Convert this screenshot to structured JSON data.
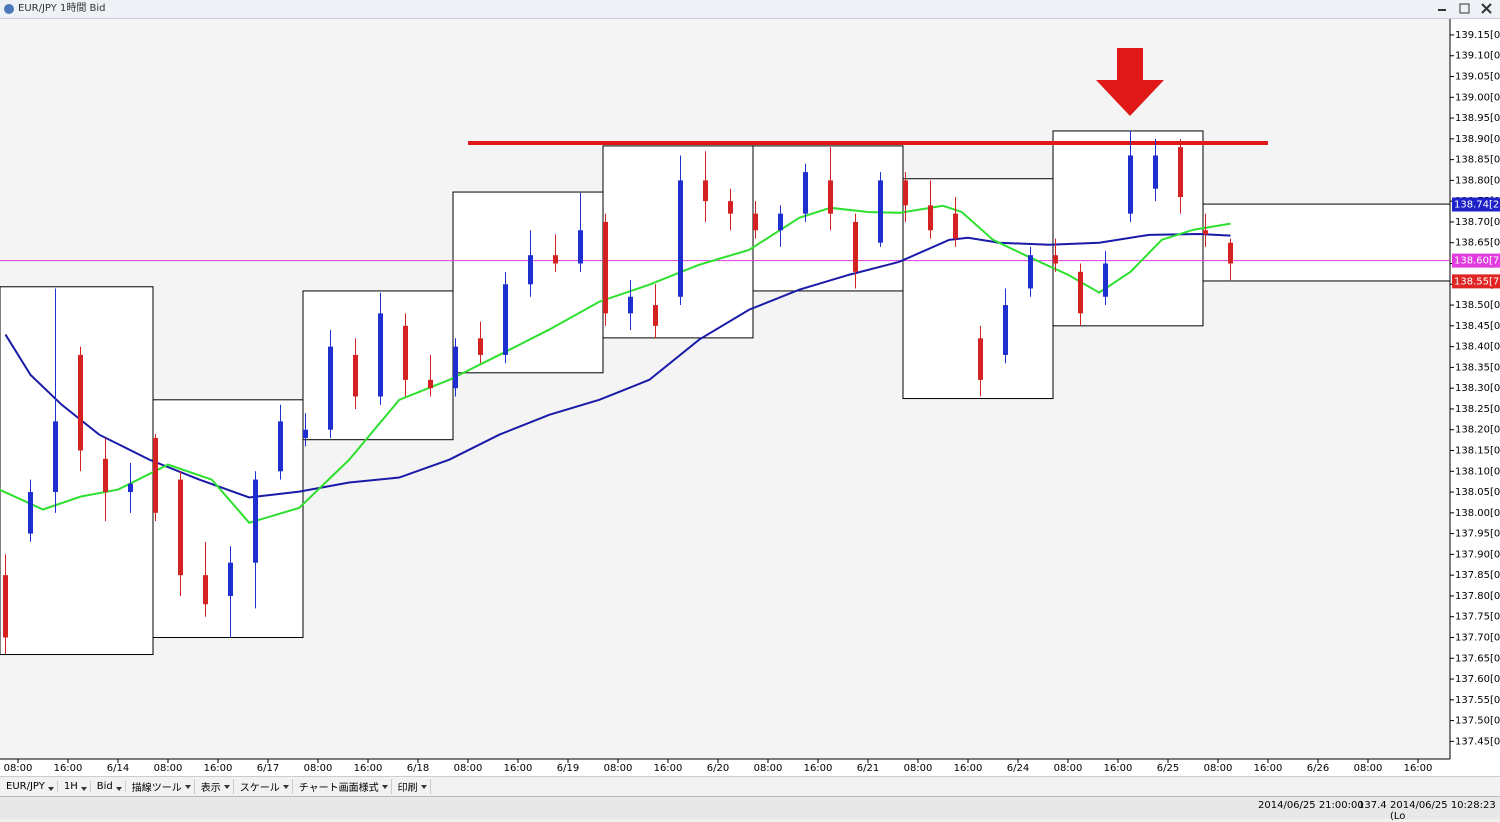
{
  "window": {
    "title": "EUR/JPY 1時間 Bid"
  },
  "toolbar": {
    "items": [
      "EUR/JPY",
      "1H",
      "Bid",
      "描線ツール",
      "表示",
      "スケール",
      "チャート画面様式",
      "印刷"
    ]
  },
  "status_bar": {
    "items": [
      "2014/06/25 21:00:00",
      "137.4",
      "2014/06/25 10:28:23 (Lo"
    ]
  },
  "chart_data": {
    "type": "candlestick",
    "xlim": [
      -2.88,
      229.12
    ],
    "ylim": [
      137.41,
      139.186
    ],
    "xticks": [
      {
        "value": 0,
        "label": "08:00"
      },
      {
        "value": 8,
        "label": "16:00"
      },
      {
        "value": 16,
        "label": "6/14"
      },
      {
        "value": 24,
        "label": "08:00"
      },
      {
        "value": 32,
        "label": "16:00"
      },
      {
        "value": 40,
        "label": "6/17"
      },
      {
        "value": 48,
        "label": "08:00"
      },
      {
        "value": 56,
        "label": "16:00"
      },
      {
        "value": 64,
        "label": "6/18"
      },
      {
        "value": 72,
        "label": "08:00"
      },
      {
        "value": 80,
        "label": "16:00"
      },
      {
        "value": 88,
        "label": "6/19"
      },
      {
        "value": 96,
        "label": "08:00"
      },
      {
        "value": 104,
        "label": "16:00"
      },
      {
        "value": 112,
        "label": "6/20"
      },
      {
        "value": 120,
        "label": "08:00"
      },
      {
        "value": 128,
        "label": "16:00"
      },
      {
        "value": 136,
        "label": "6/21"
      },
      {
        "value": 144,
        "label": "08:00"
      },
      {
        "value": 152,
        "label": "16:00"
      },
      {
        "value": 160,
        "label": "6/24"
      },
      {
        "value": 168,
        "label": "08:00"
      },
      {
        "value": 176,
        "label": "16:00"
      },
      {
        "value": 184,
        "label": "6/25"
      },
      {
        "value": 192,
        "label": "08:00"
      },
      {
        "value": 200,
        "label": "16:00"
      },
      {
        "value": 208,
        "label": "6/26"
      },
      {
        "value": 216,
        "label": "08:00"
      },
      {
        "value": 224,
        "label": "16:00"
      }
    ],
    "yticks": [
      {
        "value": 137.45,
        "label": "137.45[0]"
      },
      {
        "value": 137.5,
        "label": "137.50[0]"
      },
      {
        "value": 137.55,
        "label": "137.55[0]"
      },
      {
        "value": 137.6,
        "label": "137.60[0]"
      },
      {
        "value": 137.65,
        "label": "137.65[0]"
      },
      {
        "value": 137.7,
        "label": "137.70[0]"
      },
      {
        "value": 137.75,
        "label": "137.75[0]"
      },
      {
        "value": 137.8,
        "label": "137.80[0]"
      },
      {
        "value": 137.85,
        "label": "137.85[0]"
      },
      {
        "value": 137.9,
        "label": "137.90[0]"
      },
      {
        "value": 137.95,
        "label": "137.95[0]"
      },
      {
        "value": 138.0,
        "label": "138.00[0]"
      },
      {
        "value": 138.05,
        "label": "138.05[0]"
      },
      {
        "value": 138.1,
        "label": "138.10[0]"
      },
      {
        "value": 138.15,
        "label": "138.15[0]"
      },
      {
        "value": 138.2,
        "label": "138.20[0]"
      },
      {
        "value": 138.25,
        "label": "138.25[0]"
      },
      {
        "value": 138.3,
        "label": "138.30[0]"
      },
      {
        "value": 138.35,
        "label": "138.35[0]"
      },
      {
        "value": 138.4,
        "label": "138.40[0]"
      },
      {
        "value": 138.45,
        "label": "138.45[0]"
      },
      {
        "value": 138.5,
        "label": "138.50[0]"
      },
      {
        "value": 138.55,
        "label": "138.55[0]"
      },
      {
        "value": 138.6,
        "label": "138.60[0]"
      },
      {
        "value": 138.65,
        "label": "138.65[0]"
      },
      {
        "value": 138.7,
        "label": "138.70[0]"
      },
      {
        "value": 138.75,
        "label": "138.75[0]"
      },
      {
        "value": 138.8,
        "label": "138.80[0]"
      },
      {
        "value": 138.85,
        "label": "138.85[0]"
      },
      {
        "value": 138.9,
        "label": "138.90[0]"
      },
      {
        "value": 138.95,
        "label": "138.95[0]"
      },
      {
        "value": 139.0,
        "label": "139.00[0]"
      },
      {
        "value": 139.05,
        "label": "139.05[0]"
      },
      {
        "value": 139.1,
        "label": "139.10[0]"
      },
      {
        "value": 139.15,
        "label": "139.15[0]"
      }
    ],
    "up_color": "#1e2fd0",
    "down_color": "#d42222",
    "candles": {
      "x": [
        -2,
        2,
        6,
        10,
        14,
        18,
        22,
        26,
        30,
        34,
        38,
        42,
        46,
        50,
        54,
        58,
        62,
        66,
        70,
        74,
        78,
        82,
        86,
        90,
        94,
        98,
        102,
        106,
        110,
        114,
        118,
        122,
        126,
        130,
        134,
        138,
        142,
        146,
        150,
        154,
        158,
        162,
        166,
        170,
        174,
        178,
        182,
        186,
        190,
        194
      ],
      "open": [
        137.85,
        137.95,
        138.05,
        138.38,
        138.13,
        138.05,
        138.18,
        138.08,
        137.85,
        137.8,
        137.88,
        138.1,
        138.18,
        138.2,
        138.38,
        138.28,
        138.45,
        138.32,
        138.3,
        138.42,
        138.38,
        138.55,
        138.62,
        138.6,
        138.7,
        138.48,
        138.5,
        138.52,
        138.8,
        138.75,
        138.72,
        138.68,
        138.72,
        138.8,
        138.7,
        138.65,
        138.8,
        138.74,
        138.72,
        138.42,
        138.38,
        138.54,
        138.62,
        138.58,
        138.52,
        138.72,
        138.78,
        138.88,
        138.68,
        138.65
      ],
      "high": [
        137.9,
        138.08,
        138.54,
        138.4,
        138.18,
        138.12,
        138.19,
        138.1,
        137.93,
        137.92,
        138.1,
        138.26,
        138.24,
        138.44,
        138.42,
        138.53,
        138.48,
        138.38,
        138.42,
        138.46,
        138.58,
        138.68,
        138.67,
        138.77,
        138.72,
        138.56,
        138.55,
        138.86,
        138.87,
        138.78,
        138.75,
        138.74,
        138.84,
        138.88,
        138.72,
        138.82,
        138.82,
        138.8,
        138.76,
        138.45,
        138.54,
        138.64,
        138.66,
        138.6,
        138.63,
        138.92,
        138.9,
        138.9,
        138.72,
        138.66
      ],
      "low": [
        137.66,
        137.93,
        138.0,
        138.1,
        137.98,
        138.0,
        137.98,
        137.8,
        137.75,
        137.7,
        137.77,
        138.08,
        138.16,
        138.18,
        138.25,
        138.26,
        138.28,
        138.28,
        138.28,
        138.36,
        138.36,
        138.52,
        138.58,
        138.58,
        138.45,
        138.44,
        138.42,
        138.5,
        138.7,
        138.68,
        138.66,
        138.64,
        138.7,
        138.68,
        138.54,
        138.64,
        138.7,
        138.66,
        138.64,
        138.28,
        138.36,
        138.52,
        138.58,
        138.45,
        138.5,
        138.7,
        138.75,
        138.72,
        138.64,
        138.56
      ],
      "close": [
        137.7,
        138.05,
        138.22,
        138.15,
        138.05,
        138.07,
        138.0,
        137.85,
        137.78,
        137.88,
        138.08,
        138.22,
        138.2,
        138.4,
        138.28,
        138.48,
        138.32,
        138.3,
        138.4,
        138.38,
        138.55,
        138.62,
        138.6,
        138.68,
        138.48,
        138.52,
        138.45,
        138.8,
        138.75,
        138.72,
        138.68,
        138.72,
        138.82,
        138.72,
        138.58,
        138.8,
        138.74,
        138.68,
        138.66,
        138.32,
        138.5,
        138.62,
        138.6,
        138.48,
        138.6,
        138.86,
        138.86,
        138.76,
        138.67,
        138.6
      ]
    },
    "sessions": {
      "start": [
        -2.88,
        21.6,
        45.6,
        69.6,
        93.6,
        117.6,
        141.6,
        165.6,
        189.6
      ],
      "end": [
        21.6,
        45.6,
        69.6,
        93.6,
        117.6,
        141.6,
        165.6,
        189.6,
        229.12
      ],
      "high": [
        138.544,
        138.272,
        138.534,
        138.772,
        138.883,
        138.883,
        138.804,
        138.919,
        138.743
      ],
      "low": [
        137.659,
        137.7,
        138.176,
        138.337,
        138.421,
        138.534,
        138.275,
        138.45,
        138.558
      ]
    },
    "moving_averages": [
      {
        "color": "#1a1aa8",
        "x": [
          -2,
          2,
          7,
          13,
          21,
          29,
          37,
          45,
          53,
          61,
          69,
          77,
          85,
          93,
          101,
          109,
          117,
          125,
          133,
          141,
          149,
          152,
          157,
          165,
          173,
          181,
          189,
          194
        ],
        "values": [
          138.429,
          138.332,
          138.26,
          138.188,
          138.128,
          138.08,
          138.037,
          138.051,
          138.073,
          138.085,
          138.128,
          138.188,
          138.236,
          138.272,
          138.32,
          138.417,
          138.489,
          138.537,
          138.573,
          138.604,
          138.657,
          138.662,
          138.65,
          138.645,
          138.65,
          138.669,
          138.671,
          138.667
        ]
      },
      {
        "color": "#2ee02e",
        "x": [
          -3,
          4,
          10,
          16,
          24,
          31,
          37,
          45,
          53,
          61,
          69,
          77,
          85,
          93,
          101,
          109,
          117,
          125,
          130,
          136,
          141,
          148,
          151,
          156,
          162,
          168,
          173,
          178,
          183,
          188,
          194
        ],
        "values": [
          138.056,
          138.008,
          138.039,
          138.056,
          138.116,
          138.08,
          137.976,
          138.012,
          138.128,
          138.272,
          138.32,
          138.38,
          138.441,
          138.508,
          138.549,
          138.597,
          138.633,
          138.71,
          138.734,
          138.724,
          138.722,
          138.739,
          138.724,
          138.657,
          138.614,
          138.573,
          138.53,
          138.58,
          138.657,
          138.681,
          138.696
        ]
      }
    ],
    "level": {
      "value": 138.89,
      "x": [
        72,
        200
      ],
      "color": "#e01818"
    },
    "price_tags": [
      {
        "value": 138.742,
        "label": "138.74[2",
        "color": "#1e22c8",
        "line": false
      },
      {
        "value": 138.607,
        "label": "138.60[7",
        "color": "#e03ce0",
        "line": true
      },
      {
        "value": 138.557,
        "label": "138.55[7",
        "color": "#e02424",
        "line": false
      }
    ]
  }
}
